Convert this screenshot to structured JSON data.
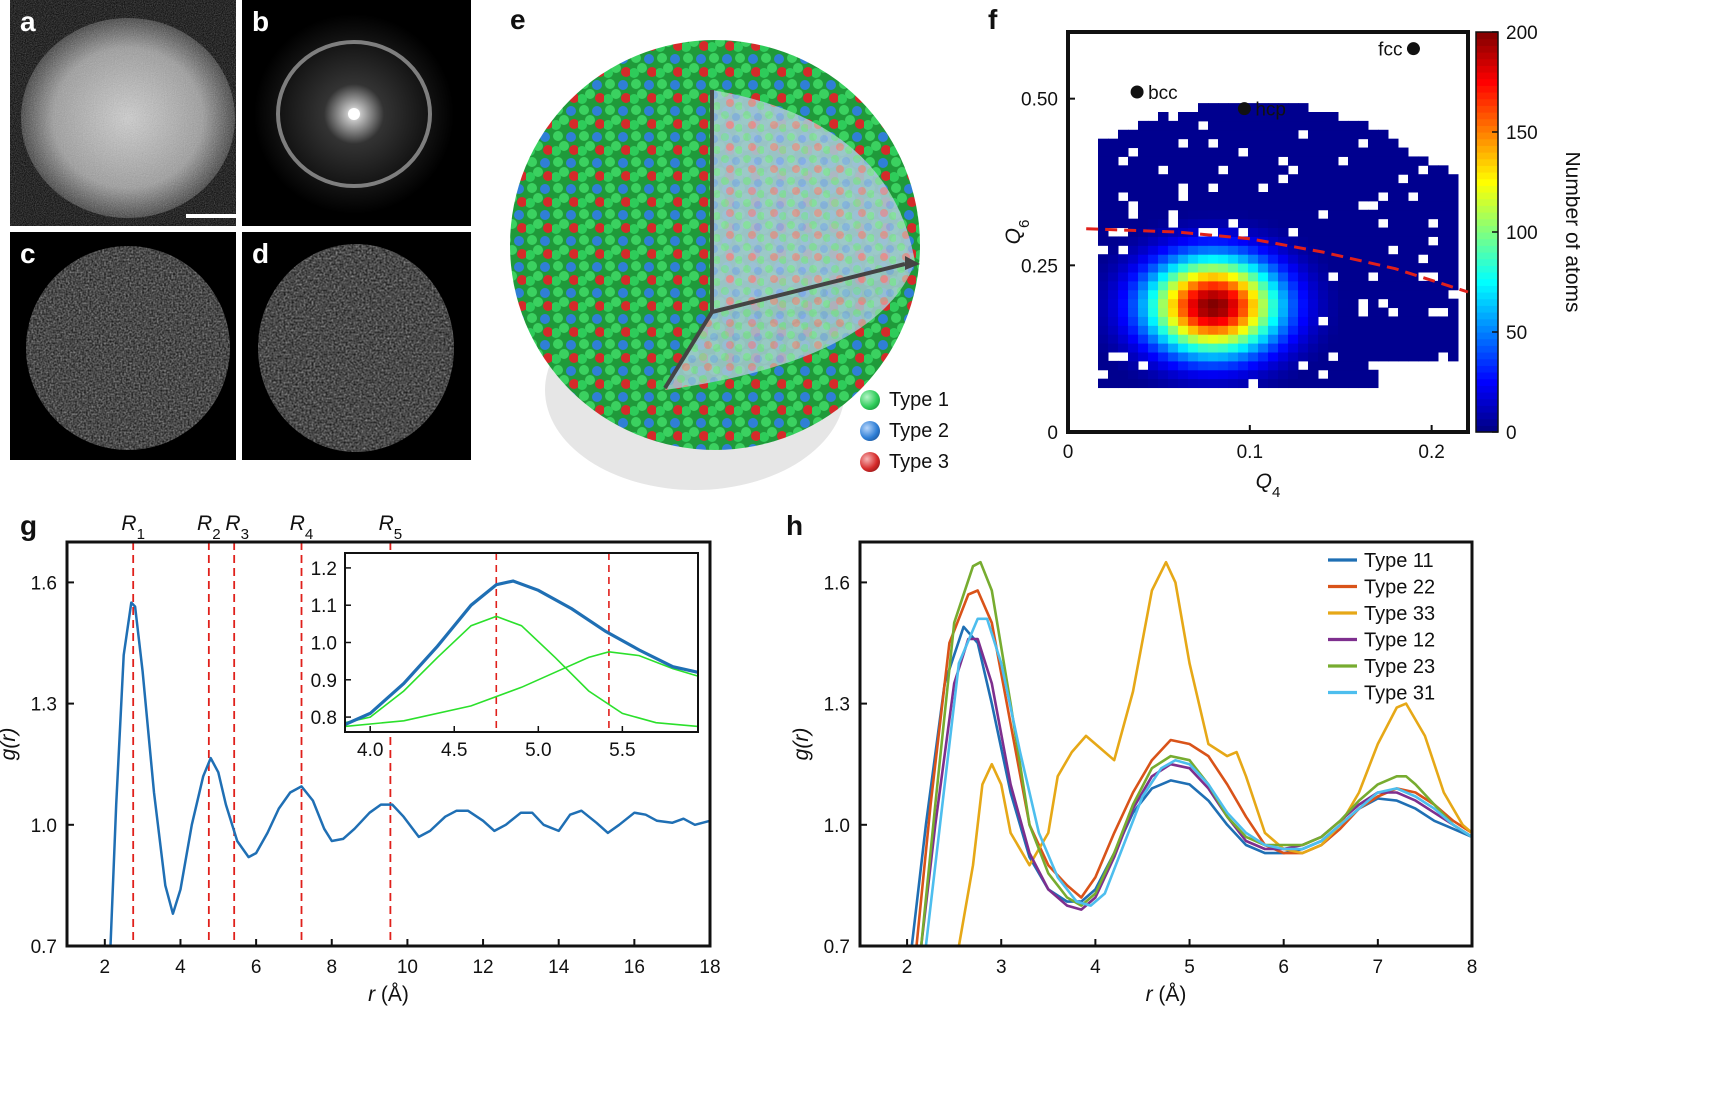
{
  "panels": {
    "a": "a",
    "b": "b",
    "c": "c",
    "d": "d",
    "e": "e",
    "f": "f",
    "g": "g",
    "h": "h"
  },
  "legend_e": [
    {
      "label": "Type 1",
      "color": "#2ecc5a"
    },
    {
      "label": "Type 2",
      "color": "#2f7fd6"
    },
    {
      "label": "Type 3",
      "color": "#d52a2a"
    }
  ],
  "chart_data": [
    {
      "id": "f",
      "type": "heatmap",
      "xlabel": "Q4",
      "ylabel": "Q6",
      "xlim": [
        0,
        0.22
      ],
      "ylim": [
        0,
        0.6
      ],
      "xticks": [
        0,
        0.1,
        0.2
      ],
      "xtick_labels": [
        "0",
        "0.1",
        "0.2"
      ],
      "yticks": [
        0,
        0.25,
        0.5
      ],
      "ytick_labels": [
        "0",
        "0.25",
        "0.50"
      ],
      "colorbar": {
        "label": "Number of atoms",
        "range": [
          0,
          200
        ],
        "ticks": [
          0,
          50,
          100,
          150,
          200
        ]
      },
      "reference_points": [
        {
          "label": "bcc",
          "x": 0.038,
          "y": 0.51
        },
        {
          "label": "hcp",
          "x": 0.097,
          "y": 0.485
        },
        {
          "label": "fcc",
          "x": 0.19,
          "y": 0.575
        }
      ],
      "peak": {
        "x": 0.08,
        "y": 0.19,
        "count": 200
      },
      "dashed_boundary": [
        [
          0.01,
          0.305
        ],
        [
          0.06,
          0.3
        ],
        [
          0.1,
          0.29
        ],
        [
          0.14,
          0.27
        ],
        [
          0.18,
          0.245
        ],
        [
          0.22,
          0.21
        ]
      ]
    },
    {
      "id": "g",
      "type": "line",
      "xlabel": "r (Å)",
      "ylabel": "g(r)",
      "xlim": [
        1,
        18
      ],
      "ylim": [
        0.7,
        1.7
      ],
      "xticks": [
        2,
        4,
        6,
        8,
        10,
        12,
        14,
        16,
        18
      ],
      "yticks": [
        0.7,
        1.0,
        1.3,
        1.6
      ],
      "ytick_labels": [
        "0.7",
        "1.0",
        "1.3",
        "1.6"
      ],
      "peak_markers": [
        {
          "label": "R",
          "sub": "1",
          "x": 2.75
        },
        {
          "label": "R",
          "sub": "2",
          "x": 4.75
        },
        {
          "label": "R",
          "sub": "3",
          "x": 5.42
        },
        {
          "label": "R",
          "sub": "4",
          "x": 7.2
        },
        {
          "label": "R",
          "sub": "5",
          "x": 9.55
        }
      ],
      "series": [
        {
          "x": [
            2.15,
            2.3,
            2.5,
            2.7,
            2.8,
            3.0,
            3.3,
            3.6,
            3.8,
            4.0,
            4.3,
            4.6,
            4.8,
            5.0,
            5.2,
            5.5,
            5.8,
            6.0,
            6.3,
            6.6,
            6.9,
            7.2,
            7.5,
            7.8,
            8.0,
            8.3,
            8.6,
            9.0,
            9.3,
            9.6,
            9.9,
            10.3,
            10.6,
            11.0,
            11.3,
            11.6,
            12.0,
            12.3,
            12.6,
            13.0,
            13.3,
            13.6,
            14.0,
            14.3,
            14.6,
            15.0,
            15.3,
            15.6,
            16.0,
            16.3,
            16.6,
            17.0,
            17.3,
            17.6,
            18.0
          ],
          "y": [
            0.7,
            1.05,
            1.42,
            1.55,
            1.54,
            1.38,
            1.08,
            0.85,
            0.78,
            0.84,
            1.0,
            1.12,
            1.165,
            1.13,
            1.05,
            0.96,
            0.92,
            0.93,
            0.98,
            1.04,
            1.08,
            1.095,
            1.06,
            0.99,
            0.96,
            0.965,
            0.99,
            1.03,
            1.05,
            1.05,
            1.02,
            0.97,
            0.985,
            1.02,
            1.035,
            1.035,
            1.01,
            0.985,
            1.0,
            1.03,
            1.03,
            1.0,
            0.985,
            1.025,
            1.035,
            1.005,
            0.98,
            1.0,
            1.03,
            1.025,
            1.01,
            1.005,
            1.015,
            1.0,
            1.01
          ]
        }
      ],
      "inset": {
        "xlim": [
          3.85,
          5.95
        ],
        "ylim": [
          0.76,
          1.24
        ],
        "xticks": [
          4.0,
          4.5,
          5.0,
          5.5
        ],
        "xtick_labels": [
          "4.0",
          "4.5",
          "5.0",
          "5.5"
        ],
        "yticks": [
          0.8,
          0.9,
          1.0,
          1.1,
          1.2
        ],
        "ytick_labels": [
          "0.8",
          "0.9",
          "1.0",
          "1.1",
          "1.2"
        ],
        "markers": [
          4.75,
          5.42
        ],
        "series": [
          {
            "role": "data",
            "x": [
              3.85,
              4.0,
              4.2,
              4.4,
              4.6,
              4.75,
              4.85,
              5.0,
              5.2,
              5.4,
              5.6,
              5.8,
              5.95
            ],
            "y": [
              0.78,
              0.81,
              0.89,
              0.99,
              1.1,
              1.155,
              1.165,
              1.14,
              1.09,
              1.03,
              0.98,
              0.935,
              0.92
            ]
          },
          {
            "role": "fit",
            "x": [
              3.85,
              4.0,
              4.2,
              4.4,
              4.6,
              4.75,
              4.9,
              5.1,
              5.3,
              5.5,
              5.7,
              5.95
            ],
            "y": [
              0.785,
              0.8,
              0.87,
              0.96,
              1.045,
              1.07,
              1.045,
              0.96,
              0.87,
              0.81,
              0.785,
              0.775
            ]
          },
          {
            "role": "fit",
            "x": [
              3.85,
              4.2,
              4.6,
              4.9,
              5.1,
              5.3,
              5.42,
              5.6,
              5.8,
              5.95
            ],
            "y": [
              0.775,
              0.79,
              0.83,
              0.88,
              0.92,
              0.96,
              0.975,
              0.965,
              0.93,
              0.91
            ]
          }
        ]
      }
    },
    {
      "id": "h",
      "type": "line",
      "xlabel": "r (Å)",
      "ylabel": "g(r)",
      "xlim": [
        1.5,
        8
      ],
      "ylim": [
        0.7,
        1.7
      ],
      "xticks": [
        2,
        3,
        4,
        5,
        6,
        7,
        8
      ],
      "yticks": [
        0.7,
        1.0,
        1.3,
        1.6
      ],
      "ytick_labels": [
        "0.7",
        "1.0",
        "1.3",
        "1.6"
      ],
      "series": [
        {
          "name": "Type 11",
          "color": "#1f6fb4",
          "x": [
            2.05,
            2.2,
            2.4,
            2.6,
            2.75,
            2.9,
            3.1,
            3.3,
            3.5,
            3.7,
            3.85,
            4.0,
            4.2,
            4.4,
            4.6,
            4.8,
            5.0,
            5.2,
            5.4,
            5.6,
            5.8,
            6.0,
            6.2,
            6.4,
            6.6,
            6.8,
            7.0,
            7.2,
            7.4,
            7.6,
            7.8,
            8.0
          ],
          "y": [
            0.7,
            1.0,
            1.35,
            1.49,
            1.45,
            1.3,
            1.08,
            0.92,
            0.84,
            0.81,
            0.81,
            0.84,
            0.93,
            1.03,
            1.09,
            1.11,
            1.1,
            1.06,
            1.0,
            0.95,
            0.93,
            0.93,
            0.94,
            0.96,
            1.0,
            1.04,
            1.065,
            1.06,
            1.04,
            1.01,
            0.99,
            0.97
          ]
        },
        {
          "name": "Type 22",
          "color": "#d95319",
          "x": [
            2.1,
            2.25,
            2.45,
            2.65,
            2.75,
            2.9,
            3.1,
            3.3,
            3.5,
            3.7,
            3.85,
            4.0,
            4.2,
            4.4,
            4.6,
            4.8,
            5.0,
            5.2,
            5.4,
            5.6,
            5.8,
            6.0,
            6.2,
            6.4,
            6.6,
            6.8,
            7.0,
            7.2,
            7.4,
            7.6,
            7.8,
            8.0
          ],
          "y": [
            0.7,
            1.05,
            1.45,
            1.57,
            1.58,
            1.5,
            1.25,
            1.0,
            0.9,
            0.85,
            0.82,
            0.87,
            0.98,
            1.08,
            1.16,
            1.21,
            1.2,
            1.17,
            1.1,
            1.02,
            0.95,
            0.93,
            0.93,
            0.95,
            0.99,
            1.04,
            1.07,
            1.09,
            1.08,
            1.05,
            1.01,
            0.98
          ]
        },
        {
          "name": "Type 33",
          "color": "#e6a817",
          "x": [
            2.55,
            2.7,
            2.8,
            2.9,
            3.0,
            3.1,
            3.3,
            3.5,
            3.6,
            3.75,
            3.9,
            4.05,
            4.2,
            4.4,
            4.6,
            4.75,
            4.85,
            5.0,
            5.2,
            5.4,
            5.5,
            5.6,
            5.8,
            6.0,
            6.2,
            6.4,
            6.6,
            6.8,
            7.0,
            7.2,
            7.3,
            7.5,
            7.7,
            7.9,
            8.0
          ],
          "y": [
            0.7,
            0.9,
            1.1,
            1.15,
            1.1,
            0.98,
            0.9,
            0.98,
            1.12,
            1.18,
            1.22,
            1.19,
            1.16,
            1.33,
            1.58,
            1.65,
            1.6,
            1.4,
            1.2,
            1.17,
            1.18,
            1.12,
            0.98,
            0.94,
            0.93,
            0.95,
            1.0,
            1.08,
            1.2,
            1.29,
            1.3,
            1.22,
            1.08,
            1.0,
            0.98
          ]
        },
        {
          "name": "Type 12",
          "color": "#7e2f8e",
          "x": [
            2.15,
            2.3,
            2.5,
            2.65,
            2.75,
            2.9,
            3.1,
            3.3,
            3.5,
            3.7,
            3.85,
            4.0,
            4.2,
            4.4,
            4.6,
            4.8,
            5.0,
            5.2,
            5.4,
            5.6,
            5.8,
            6.0,
            6.2,
            6.4,
            6.6,
            6.8,
            7.0,
            7.2,
            7.4,
            7.6,
            7.8,
            8.0
          ],
          "y": [
            0.7,
            1.0,
            1.35,
            1.46,
            1.46,
            1.35,
            1.1,
            0.93,
            0.84,
            0.8,
            0.79,
            0.82,
            0.92,
            1.04,
            1.12,
            1.15,
            1.14,
            1.09,
            1.02,
            0.96,
            0.94,
            0.94,
            0.95,
            0.97,
            1.01,
            1.05,
            1.08,
            1.08,
            1.06,
            1.03,
            1.0,
            0.97
          ]
        },
        {
          "name": "Type 23",
          "color": "#77ac30",
          "x": [
            2.15,
            2.3,
            2.5,
            2.7,
            2.78,
            2.9,
            3.1,
            3.3,
            3.5,
            3.7,
            3.85,
            4.0,
            4.2,
            4.4,
            4.6,
            4.8,
            5.0,
            5.2,
            5.4,
            5.6,
            5.8,
            6.0,
            6.2,
            6.4,
            6.6,
            6.8,
            7.0,
            7.2,
            7.3,
            7.4,
            7.6,
            7.8,
            8.0
          ],
          "y": [
            0.7,
            1.05,
            1.5,
            1.64,
            1.65,
            1.58,
            1.3,
            1.0,
            0.88,
            0.82,
            0.8,
            0.83,
            0.93,
            1.05,
            1.14,
            1.17,
            1.16,
            1.1,
            1.02,
            0.97,
            0.95,
            0.95,
            0.95,
            0.97,
            1.01,
            1.06,
            1.1,
            1.12,
            1.12,
            1.1,
            1.05,
            1.0,
            0.97
          ]
        },
        {
          "name": "Type 31",
          "color": "#4dbeee",
          "x": [
            2.2,
            2.35,
            2.55,
            2.75,
            2.85,
            3.0,
            3.2,
            3.4,
            3.6,
            3.8,
            3.95,
            4.1,
            4.3,
            4.5,
            4.7,
            4.85,
            5.0,
            5.2,
            5.4,
            5.6,
            5.8,
            6.0,
            6.2,
            6.4,
            6.6,
            6.8,
            7.0,
            7.2,
            7.4,
            7.6,
            7.8,
            8.0
          ],
          "y": [
            0.7,
            1.0,
            1.4,
            1.51,
            1.51,
            1.4,
            1.18,
            0.98,
            0.87,
            0.81,
            0.8,
            0.83,
            0.95,
            1.07,
            1.14,
            1.16,
            1.15,
            1.1,
            1.03,
            0.98,
            0.95,
            0.94,
            0.94,
            0.96,
            1.0,
            1.04,
            1.08,
            1.09,
            1.07,
            1.04,
            1.0,
            0.97
          ]
        }
      ]
    }
  ]
}
